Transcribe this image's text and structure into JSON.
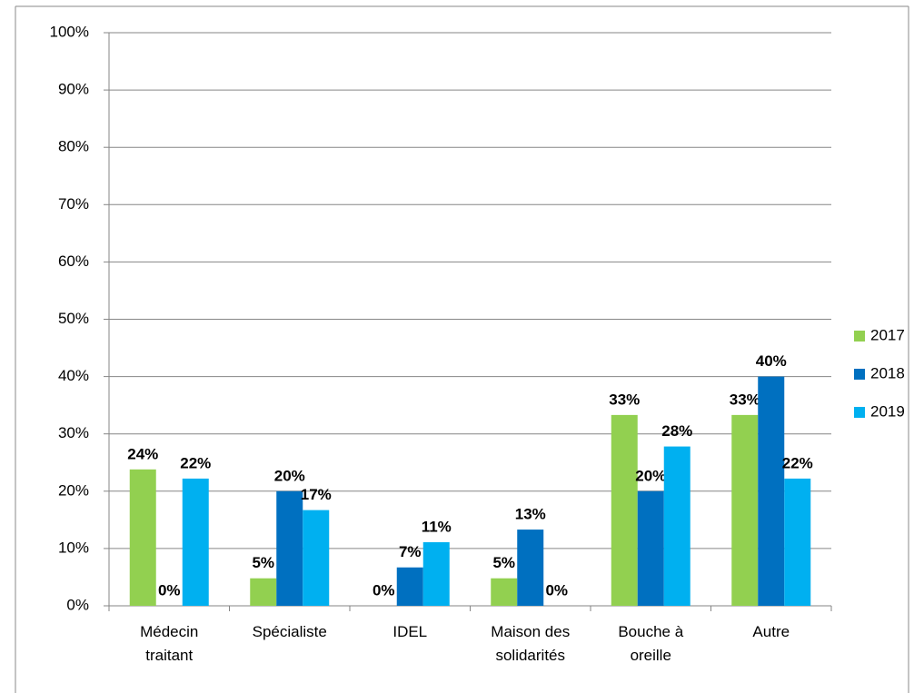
{
  "chart_data": {
    "type": "bar",
    "categories": [
      "Médecin traitant",
      "Spécialiste",
      "IDEL",
      "Maison des solidarités",
      "Bouche à oreille",
      "Autre"
    ],
    "series": [
      {
        "name": "2017",
        "color": "#92d050",
        "values": [
          23.8,
          4.8,
          0,
          4.8,
          33.3,
          33.3
        ],
        "value_labels": [
          "24%",
          "5%",
          "0%",
          "5%",
          "33%",
          "33%"
        ]
      },
      {
        "name": "2018",
        "color": "#0070c0",
        "values": [
          0,
          20,
          6.7,
          13.3,
          20,
          40
        ],
        "value_labels": [
          "0%",
          "20%",
          "7%",
          "13%",
          "20%",
          "40%"
        ]
      },
      {
        "name": "2019",
        "color": "#00b0f0",
        "values": [
          22.2,
          16.7,
          11.1,
          0,
          27.8,
          22.2
        ],
        "value_labels": [
          "22%",
          "17%",
          "11%",
          "0%",
          "28%",
          "22%"
        ]
      }
    ],
    "ylim": [
      0,
      100
    ],
    "yticks": [
      {
        "value": 0,
        "label": "0%"
      },
      {
        "value": 10,
        "label": "10%"
      },
      {
        "value": 20,
        "label": "20%"
      },
      {
        "value": 30,
        "label": "30%"
      },
      {
        "value": 40,
        "label": "40%"
      },
      {
        "value": 50,
        "label": "50%"
      },
      {
        "value": 60,
        "label": "60%"
      },
      {
        "value": 70,
        "label": "70%"
      },
      {
        "value": 80,
        "label": "80%"
      },
      {
        "value": 90,
        "label": "90%"
      },
      {
        "value": 100,
        "label": "100%"
      }
    ],
    "grid": true,
    "legend": "right"
  }
}
